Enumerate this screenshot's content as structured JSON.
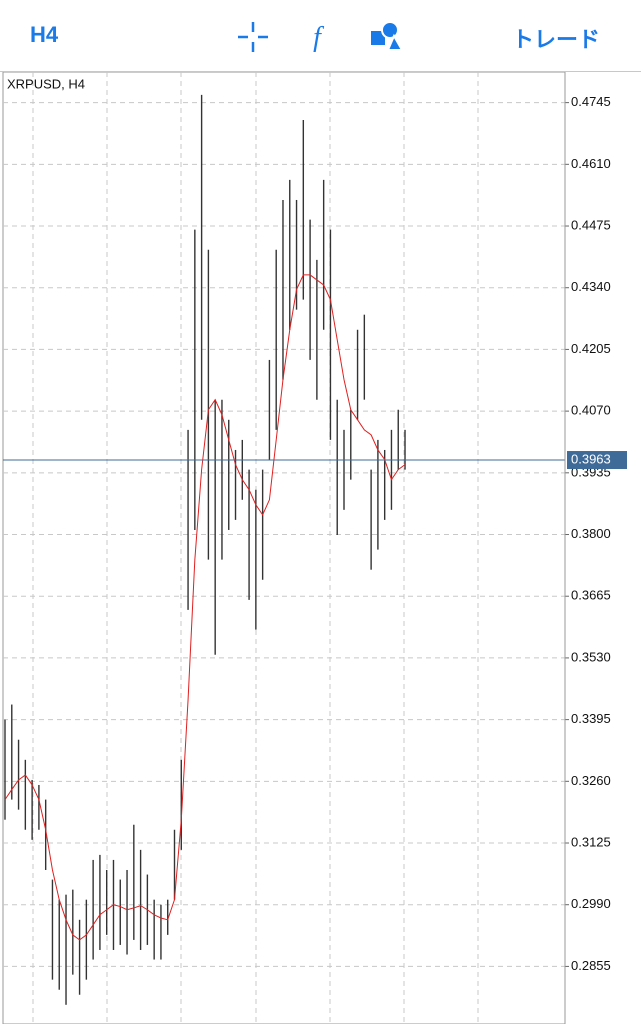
{
  "toolbar": {
    "timeframe": "H4",
    "trade": "トレード"
  },
  "chart_data": {
    "type": "ohlc",
    "title": "XRPUSD, H4",
    "high": [
      0.3395,
      0.3428,
      0.3351,
      0.3307,
      0.3263,
      0.3252,
      0.322,
      0.3045,
      0.3001,
      0.3012,
      0.3023,
      0.2957,
      0.3001,
      0.3088,
      0.3099,
      0.3066,
      0.3088,
      0.3045,
      0.3066,
      0.3165,
      0.311,
      0.3056,
      0.3001,
      0.299,
      0.3001,
      0.3154,
      0.3307,
      0.4029,
      0.4467,
      0.4762,
      0.4423,
      0.4095,
      0.4095,
      0.4051,
      0.3985,
      0.4007,
      0.3942,
      0.3898,
      0.3942,
      0.4182,
      0.4423,
      0.4532,
      0.4576,
      0.4532,
      0.4707,
      0.4489,
      0.4401,
      0.4576,
      0.4467,
      0.4095,
      0.4029,
      0.4073,
      0.4248,
      0.4281,
      0.3942,
      0.4007,
      0.3985,
      0.4029,
      0.4073,
      0.4029
    ],
    "low": [
      0.3176,
      0.322,
      0.3198,
      0.3154,
      0.3132,
      0.3154,
      0.3066,
      0.2826,
      0.2804,
      0.2771,
      0.2837,
      0.2793,
      0.2826,
      0.287,
      0.2891,
      0.2924,
      0.2891,
      0.2902,
      0.2881,
      0.2913,
      0.2891,
      0.2902,
      0.287,
      0.287,
      0.2924,
      0.3001,
      0.311,
      0.3635,
      0.381,
      0.4051,
      0.3745,
      0.3537,
      0.3745,
      0.381,
      0.3832,
      0.3876,
      0.3657,
      0.3592,
      0.3701,
      0.3964,
      0.4029,
      0.4139,
      0.4248,
      0.4292,
      0.4314,
      0.4182,
      0.4095,
      0.4248,
      0.4007,
      0.3799,
      0.3854,
      0.392,
      0.4051,
      0.4095,
      0.3723,
      0.3767,
      0.3832,
      0.3854,
      0.3942,
      0.3942
    ],
    "bar_color": "#333333",
    "ma": [
      0.322,
      0.3242,
      0.3263,
      0.3274,
      0.3252,
      0.322,
      0.3154,
      0.3066,
      0.3001,
      0.2957,
      0.2924,
      0.2913,
      0.2924,
      0.2946,
      0.2968,
      0.2979,
      0.299,
      0.2986,
      0.2979,
      0.2983,
      0.2988,
      0.2979,
      0.2968,
      0.2961,
      0.2957,
      0.3001,
      0.3176,
      0.3438,
      0.3745,
      0.3942,
      0.4073,
      0.4095,
      0.4062,
      0.4007,
      0.3953,
      0.392,
      0.3898,
      0.3865,
      0.3843,
      0.3876,
      0.4007,
      0.4139,
      0.4248,
      0.4336,
      0.4368,
      0.4368,
      0.4357,
      0.4346,
      0.4314,
      0.4226,
      0.4139,
      0.4073,
      0.4051,
      0.4029,
      0.4018,
      0.3985,
      0.3964,
      0.392,
      0.3942,
      0.3953
    ],
    "ma_color": "#e02020",
    "current_price": 0.3963,
    "current_color": "#3f6b98",
    "ylim": [
      0.2729,
      0.4812
    ],
    "yticks": [
      0.4745,
      {
        "value": 0.461,
        "label": "0.4610"
      },
      0.4475,
      {
        "value": 0.434,
        "label": "0.4340"
      },
      0.4205,
      {
        "value": 0.407,
        "label": "0.4070"
      },
      0.3935,
      {
        "value": 0.38,
        "label": "0.3800"
      },
      0.3665,
      {
        "value": 0.353,
        "label": "0.3530"
      },
      0.3395,
      {
        "value": 0.326,
        "label": "0.3260"
      },
      0.3125,
      {
        "value": 0.299,
        "label": "0.2990"
      },
      0.2855
    ],
    "grid": true
  }
}
